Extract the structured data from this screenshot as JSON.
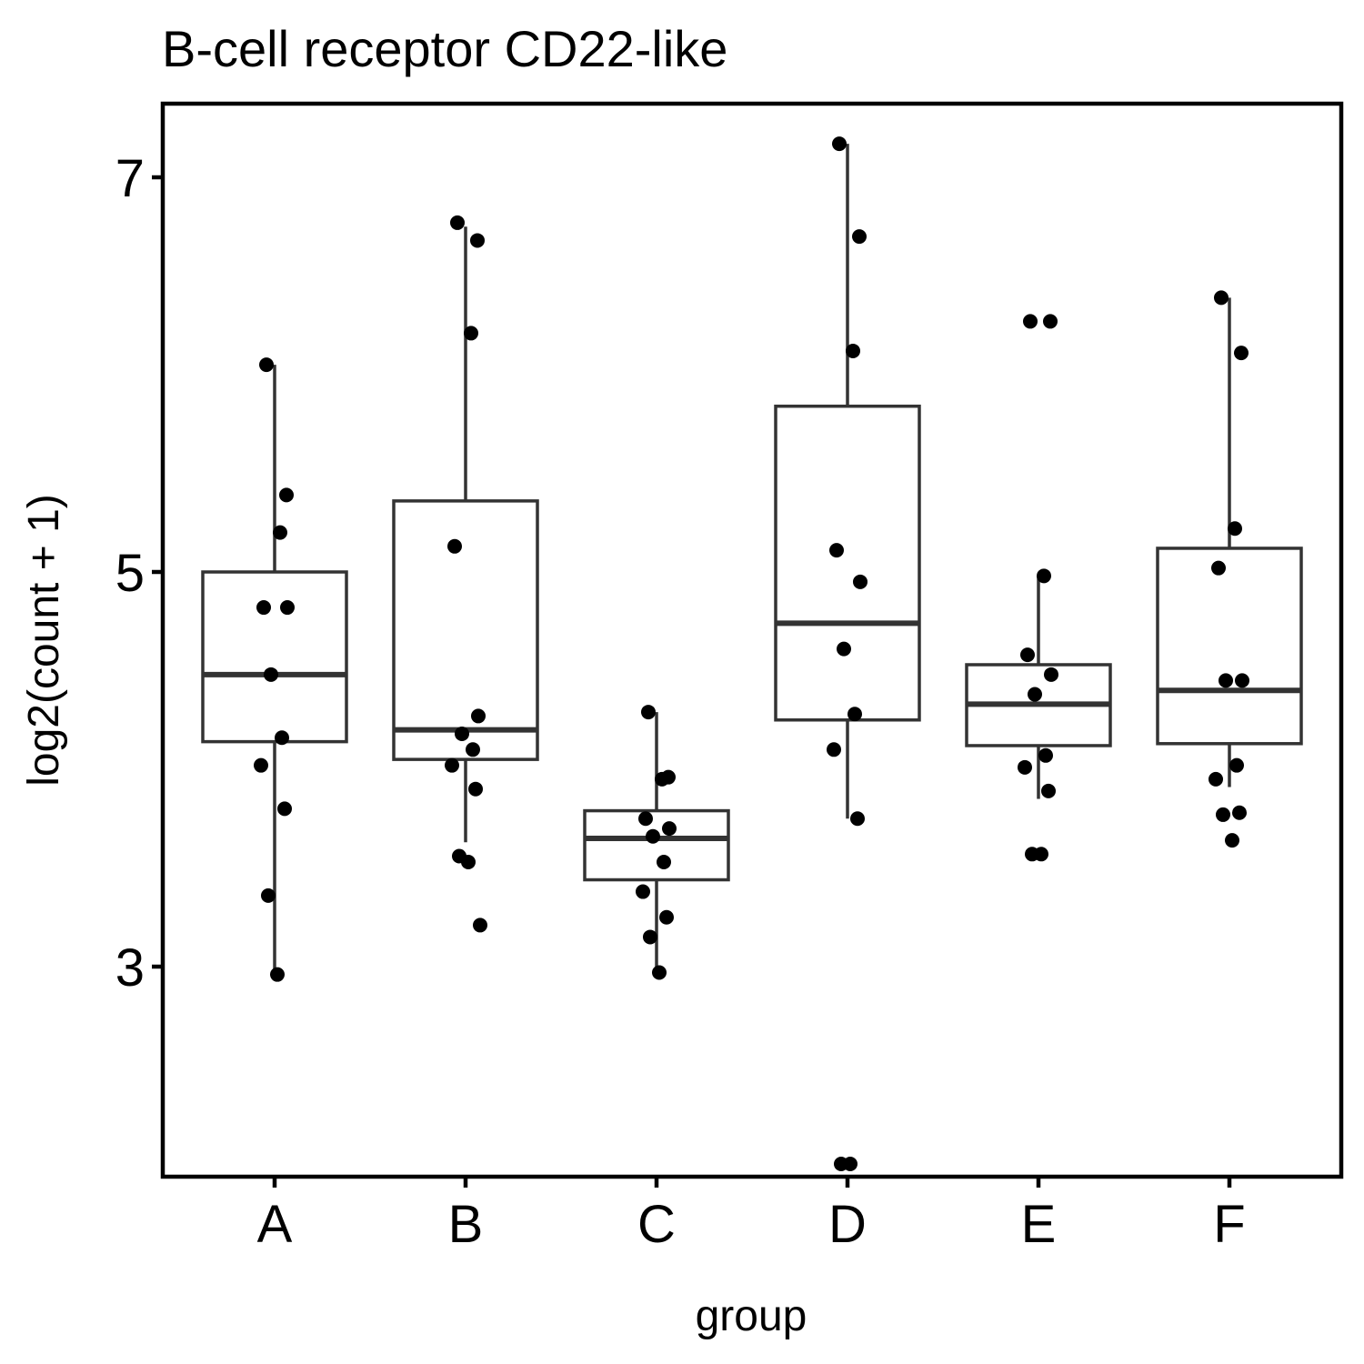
{
  "chart_data": {
    "type": "box",
    "title": "B-cell receptor CD22-like",
    "xlabel": "group",
    "ylabel": "log2(count + 1)",
    "ylim": [
      1.7,
      7.5
    ],
    "yticks": [
      3,
      5,
      7
    ],
    "categories": [
      "A",
      "B",
      "C",
      "D",
      "E",
      "F"
    ],
    "grid": false,
    "colors": {
      "box_line": "#333333",
      "point": "#000000",
      "frame": "#000000"
    },
    "boxes": [
      {
        "group": "A",
        "q1": 4.14,
        "median": 4.48,
        "q3": 5.0,
        "whisker_low": 2.97,
        "whisker_high": 6.05
      },
      {
        "group": "B",
        "q1": 4.05,
        "median": 4.2,
        "q3": 5.36,
        "whisker_low": 3.63,
        "whisker_high": 6.75
      },
      {
        "group": "C",
        "q1": 3.44,
        "median": 3.65,
        "q3": 3.79,
        "whisker_low": 2.97,
        "whisker_high": 4.29
      },
      {
        "group": "D",
        "q1": 4.25,
        "median": 4.74,
        "q3": 5.84,
        "whisker_low": 3.75,
        "whisker_high": 7.17
      },
      {
        "group": "E",
        "q1": 4.12,
        "median": 4.33,
        "q3": 4.53,
        "whisker_low": 3.85,
        "whisker_high": 4.98
      },
      {
        "group": "F",
        "q1": 4.13,
        "median": 4.4,
        "q3": 5.12,
        "whisker_low": 3.91,
        "whisker_high": 6.39
      }
    ],
    "points": [
      {
        "group": "A",
        "y": [
          6.05,
          5.39,
          5.2,
          4.82,
          4.82,
          4.48,
          4.16,
          4.02,
          3.8,
          3.36,
          2.96
        ]
      },
      {
        "group": "B",
        "y": [
          6.77,
          6.68,
          6.21,
          5.13,
          4.27,
          4.18,
          4.1,
          4.02,
          3.9,
          3.56,
          3.53,
          3.21
        ]
      },
      {
        "group": "C",
        "y": [
          4.29,
          3.96,
          3.95,
          3.75,
          3.7,
          3.66,
          3.53,
          3.38,
          3.25,
          3.15,
          2.97
        ]
      },
      {
        "group": "D",
        "y": [
          7.17,
          6.7,
          6.12,
          5.11,
          4.95,
          4.61,
          4.28,
          4.1,
          3.75,
          2.0,
          2.0
        ]
      },
      {
        "group": "E",
        "y": [
          6.27,
          6.27,
          4.98,
          4.58,
          4.48,
          4.38,
          4.07,
          4.01,
          3.89,
          3.57,
          3.57
        ]
      },
      {
        "group": "F",
        "y": [
          6.39,
          6.11,
          5.22,
          5.02,
          4.45,
          4.45,
          4.02,
          3.95,
          3.78,
          3.77,
          3.64
        ]
      }
    ]
  }
}
